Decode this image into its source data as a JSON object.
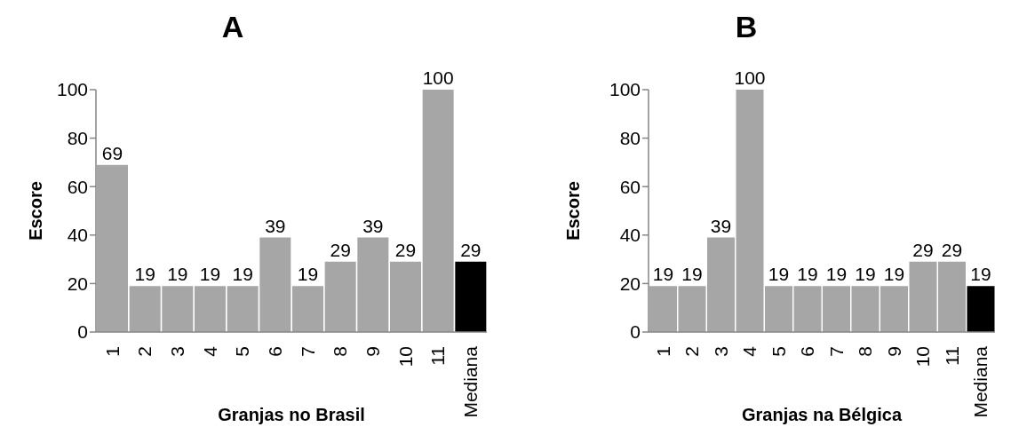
{
  "chart_data": [
    {
      "type": "bar",
      "title": "A",
      "xlabel": "Granjas no Brasil",
      "ylabel": "Escore",
      "categories": [
        "1",
        "2",
        "3",
        "4",
        "5",
        "6",
        "7",
        "8",
        "9",
        "10",
        "11",
        "Mediana"
      ],
      "values": [
        69,
        19,
        19,
        19,
        19,
        39,
        19,
        29,
        39,
        29,
        100,
        29
      ],
      "colors": [
        "#a6a6a6",
        "#a6a6a6",
        "#a6a6a6",
        "#a6a6a6",
        "#a6a6a6",
        "#a6a6a6",
        "#a6a6a6",
        "#a6a6a6",
        "#a6a6a6",
        "#a6a6a6",
        "#a6a6a6",
        "#000000"
      ],
      "ylim": [
        0,
        100
      ],
      "yticks": [
        0,
        20,
        40,
        60,
        80,
        100
      ],
      "data_labels": true
    },
    {
      "type": "bar",
      "title": "B",
      "xlabel": "Granjas na Bélgica",
      "ylabel": "Escore",
      "categories": [
        "1",
        "2",
        "3",
        "4",
        "5",
        "6",
        "7",
        "8",
        "9",
        "10",
        "11",
        "Mediana"
      ],
      "values": [
        19,
        19,
        39,
        100,
        19,
        19,
        19,
        19,
        19,
        29,
        29,
        19
      ],
      "colors": [
        "#a6a6a6",
        "#a6a6a6",
        "#a6a6a6",
        "#a6a6a6",
        "#a6a6a6",
        "#a6a6a6",
        "#a6a6a6",
        "#a6a6a6",
        "#a6a6a6",
        "#a6a6a6",
        "#a6a6a6",
        "#000000"
      ],
      "ylim": [
        0,
        100
      ],
      "yticks": [
        0,
        20,
        40,
        60,
        80,
        100
      ],
      "data_labels": true
    }
  ]
}
